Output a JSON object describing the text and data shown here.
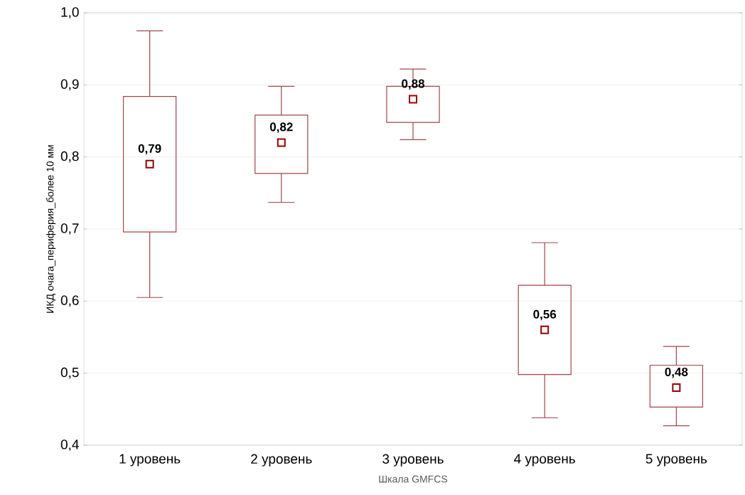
{
  "chart_data": {
    "type": "box",
    "xlabel": "Шкала GMFCS",
    "ylabel": "ИКД очага_периферия_более 10 мм",
    "categories": [
      "1 уровень",
      "2 уровень",
      "3 уровень",
      "4 уровень",
      "5 уровень"
    ],
    "boxes": [
      {
        "low": 0.605,
        "q1": 0.696,
        "median": 0.79,
        "q3": 0.884,
        "high": 0.975
      },
      {
        "low": 0.737,
        "q1": 0.777,
        "median": 0.82,
        "q3": 0.858,
        "high": 0.898
      },
      {
        "low": 0.824,
        "q1": 0.848,
        "median": 0.88,
        "q3": 0.898,
        "high": 0.922
      },
      {
        "low": 0.438,
        "q1": 0.498,
        "median": 0.56,
        "q3": 0.622,
        "high": 0.681
      },
      {
        "low": 0.427,
        "q1": 0.453,
        "median": 0.48,
        "q3": 0.511,
        "high": 0.537
      }
    ],
    "value_labels": [
      "0,79",
      "0,82",
      "0,88",
      "0,56",
      "0,48"
    ],
    "color": "#a0464b",
    "marker": "square",
    "grid": "y",
    "ylim": [
      0.4,
      1.0
    ],
    "yticks": [
      {
        "value": 0.4,
        "label": "0,4"
      },
      {
        "value": 0.5,
        "label": "0,5"
      },
      {
        "value": 0.6,
        "label": "0,6"
      },
      {
        "value": 0.7,
        "label": "0,7"
      },
      {
        "value": 0.8,
        "label": "0,8"
      },
      {
        "value": 0.9,
        "label": "0,9"
      },
      {
        "value": 1.0,
        "label": "1,0"
      }
    ]
  }
}
